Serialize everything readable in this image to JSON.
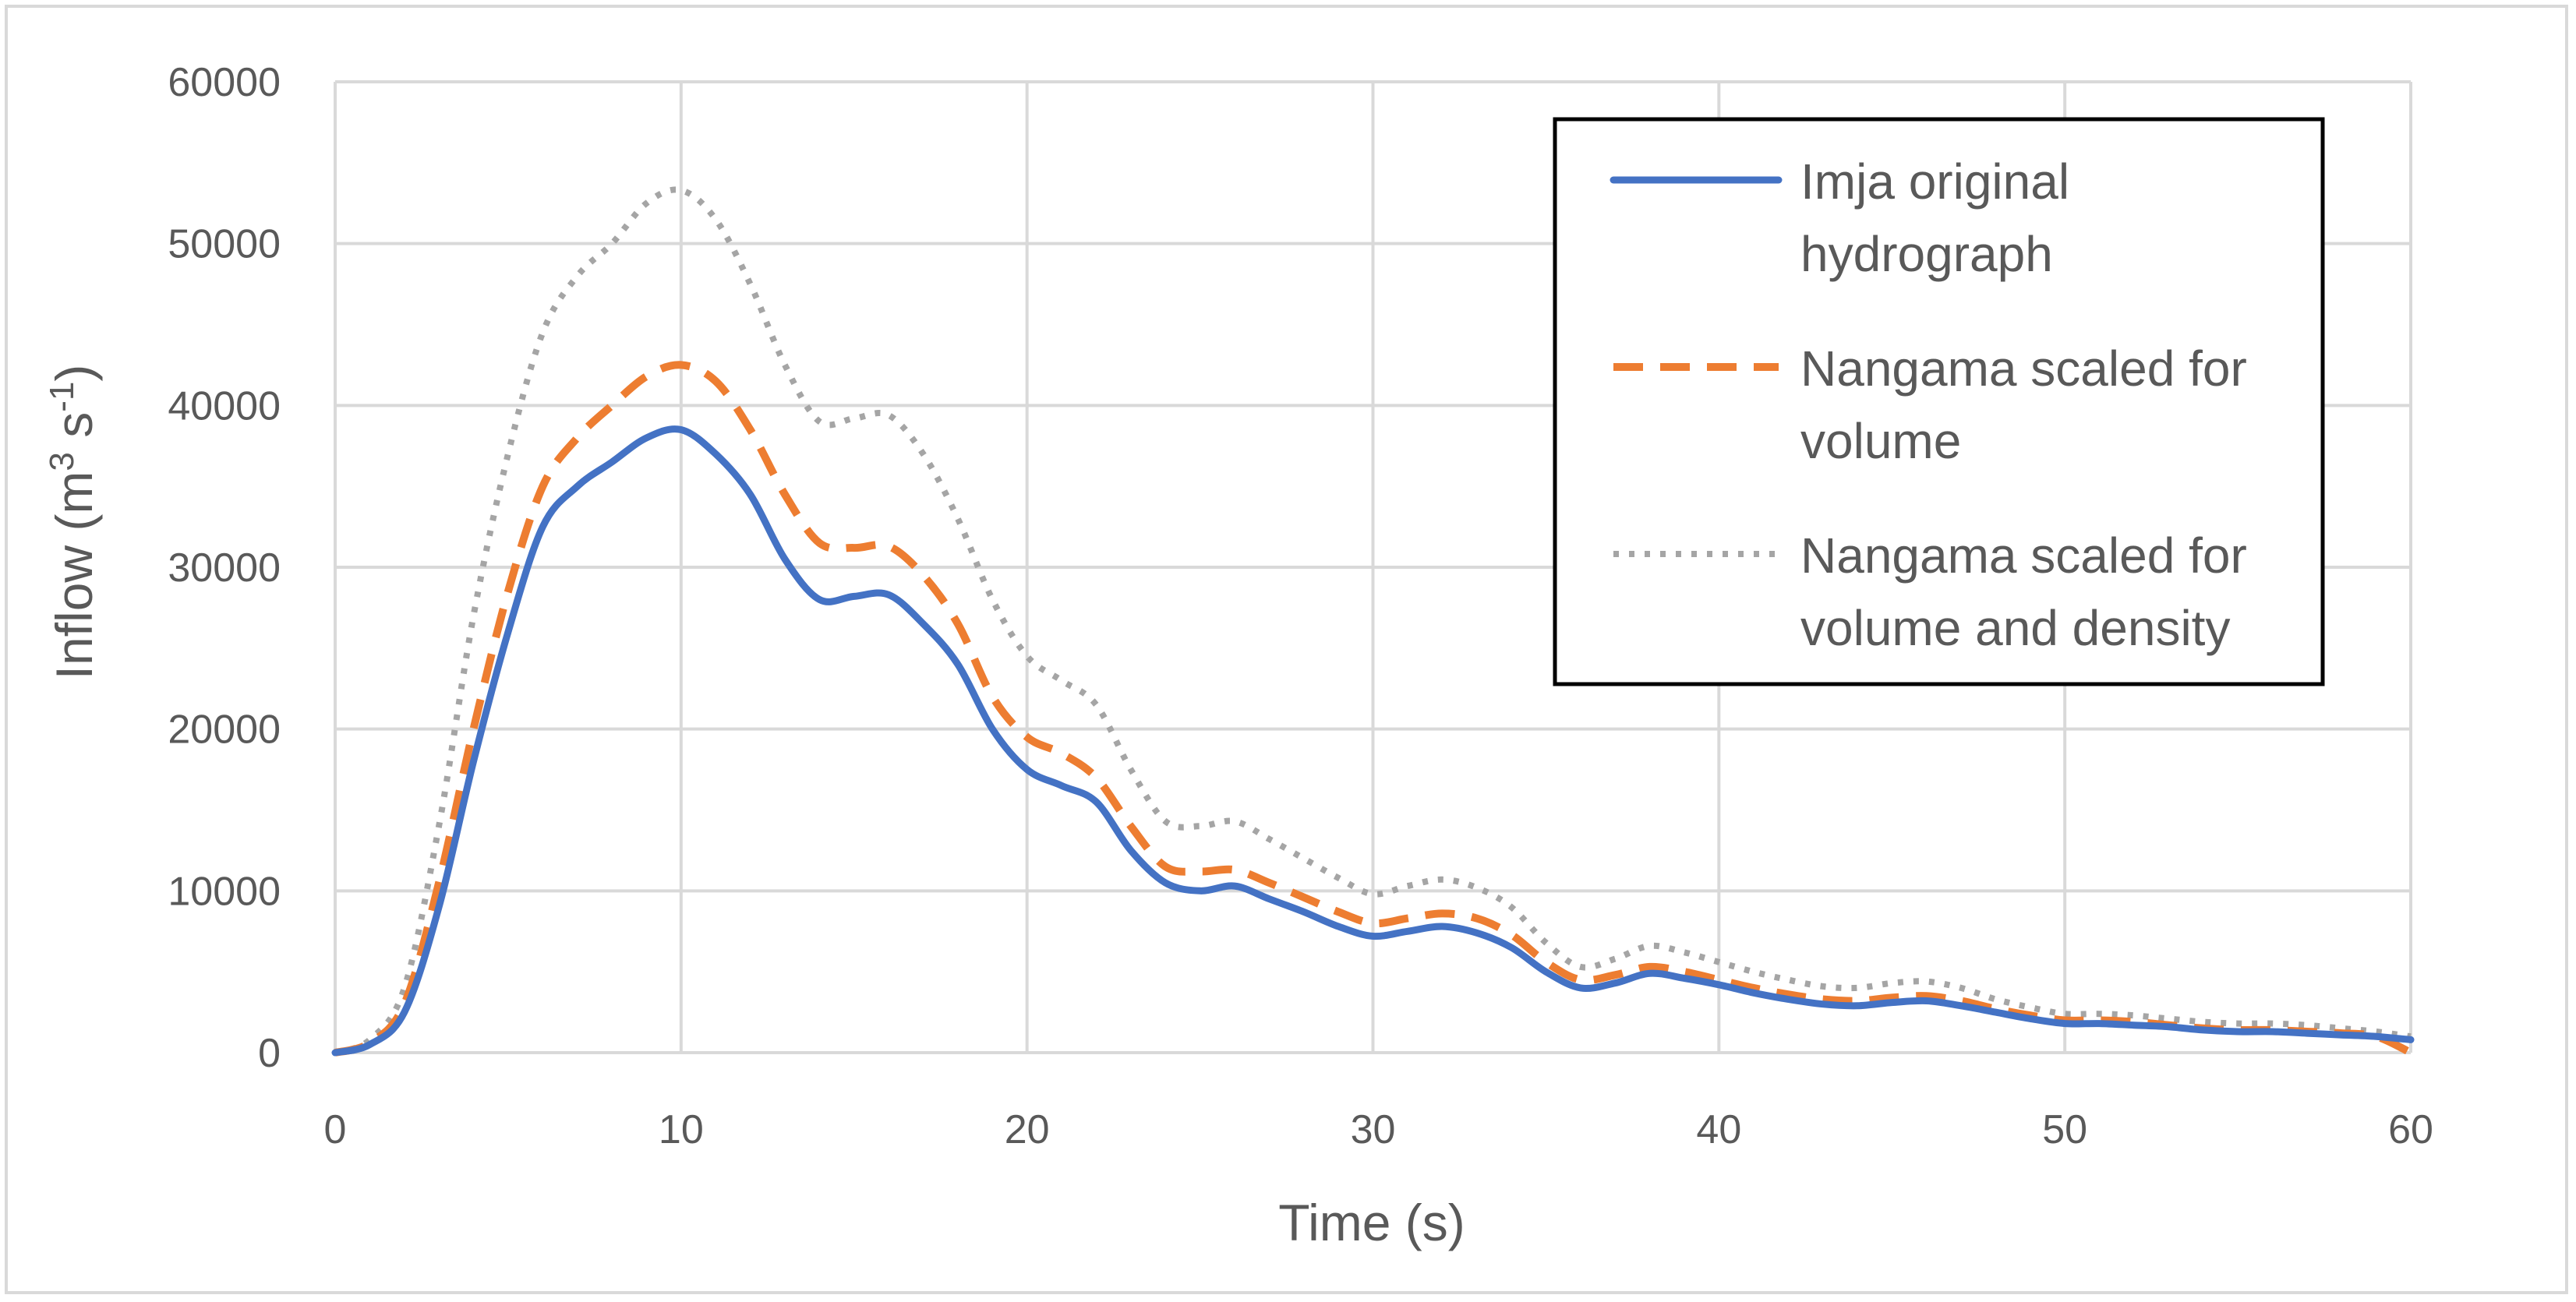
{
  "chart_data": {
    "type": "line",
    "title": "",
    "xlabel": "Time (s)",
    "ylabel": {
      "base": "Inflow (m",
      "sup1": "3",
      "mid": " s",
      "sup2": "-1",
      "end": ")"
    },
    "xlim": [
      0,
      60
    ],
    "ylim": [
      0,
      60000
    ],
    "x_ticks": [
      0,
      10,
      20,
      30,
      40,
      50,
      60
    ],
    "y_ticks": [
      0,
      10000,
      20000,
      30000,
      40000,
      50000,
      60000
    ],
    "grid": true,
    "legend_position": "top-right",
    "series": [
      {
        "name": "Imja original hydrograph",
        "legend_lines": [
          "Imja original",
          "hydrograph"
        ],
        "color": "#4472c4",
        "style": "solid",
        "points": [
          [
            0,
            0
          ],
          [
            1,
            500
          ],
          [
            2,
            2500
          ],
          [
            3,
            9000
          ],
          [
            4,
            18000
          ],
          [
            5,
            26000
          ],
          [
            6,
            32500
          ],
          [
            7,
            35000
          ],
          [
            8,
            36500
          ],
          [
            9,
            38000
          ],
          [
            10,
            38500
          ],
          [
            11,
            37000
          ],
          [
            12,
            34500
          ],
          [
            13,
            30500
          ],
          [
            14,
            28000
          ],
          [
            15,
            28200
          ],
          [
            16,
            28300
          ],
          [
            17,
            26500
          ],
          [
            18,
            24000
          ],
          [
            19,
            20000
          ],
          [
            20,
            17500
          ],
          [
            21,
            16500
          ],
          [
            22,
            15500
          ],
          [
            23,
            12500
          ],
          [
            24,
            10500
          ],
          [
            25,
            10000
          ],
          [
            26,
            10300
          ],
          [
            27,
            9500
          ],
          [
            28,
            8700
          ],
          [
            29,
            7800
          ],
          [
            30,
            7200
          ],
          [
            31,
            7500
          ],
          [
            32,
            7800
          ],
          [
            33,
            7400
          ],
          [
            34,
            6500
          ],
          [
            35,
            5000
          ],
          [
            36,
            4000
          ],
          [
            37,
            4300
          ],
          [
            38,
            4900
          ],
          [
            39,
            4600
          ],
          [
            40,
            4200
          ],
          [
            41,
            3700
          ],
          [
            42,
            3300
          ],
          [
            43,
            3000
          ],
          [
            44,
            2900
          ],
          [
            45,
            3100
          ],
          [
            46,
            3200
          ],
          [
            47,
            2900
          ],
          [
            48,
            2500
          ],
          [
            49,
            2100
          ],
          [
            50,
            1800
          ],
          [
            51,
            1800
          ],
          [
            52,
            1700
          ],
          [
            53,
            1600
          ],
          [
            54,
            1400
          ],
          [
            55,
            1300
          ],
          [
            56,
            1300
          ],
          [
            57,
            1200
          ],
          [
            58,
            1100
          ],
          [
            59,
            1000
          ],
          [
            60,
            800
          ]
        ]
      },
      {
        "name": "Nangama scaled for volume",
        "legend_lines": [
          "Nangama scaled for",
          "volume"
        ],
        "color": "#ed7d31",
        "style": "dashed",
        "points": [
          [
            0,
            0
          ],
          [
            1,
            600
          ],
          [
            2,
            3000
          ],
          [
            3,
            10500
          ],
          [
            4,
            20000
          ],
          [
            5,
            28500
          ],
          [
            6,
            35000
          ],
          [
            7,
            38000
          ],
          [
            8,
            40000
          ],
          [
            9,
            41800
          ],
          [
            10,
            42500
          ],
          [
            11,
            41500
          ],
          [
            12,
            38500
          ],
          [
            13,
            34500
          ],
          [
            14,
            31500
          ],
          [
            15,
            31200
          ],
          [
            16,
            31300
          ],
          [
            17,
            29500
          ],
          [
            18,
            26500
          ],
          [
            19,
            22000
          ],
          [
            20,
            19500
          ],
          [
            21,
            18500
          ],
          [
            22,
            17000
          ],
          [
            23,
            14000
          ],
          [
            24,
            11500
          ],
          [
            25,
            11200
          ],
          [
            26,
            11300
          ],
          [
            27,
            10500
          ],
          [
            28,
            9600
          ],
          [
            29,
            8700
          ],
          [
            30,
            8000
          ],
          [
            31,
            8300
          ],
          [
            32,
            8600
          ],
          [
            33,
            8300
          ],
          [
            34,
            7300
          ],
          [
            35,
            5600
          ],
          [
            36,
            4500
          ],
          [
            37,
            4800
          ],
          [
            38,
            5300
          ],
          [
            39,
            5000
          ],
          [
            40,
            4500
          ],
          [
            41,
            4000
          ],
          [
            42,
            3600
          ],
          [
            43,
            3300
          ],
          [
            44,
            3200
          ],
          [
            45,
            3400
          ],
          [
            46,
            3500
          ],
          [
            47,
            3200
          ],
          [
            48,
            2700
          ],
          [
            49,
            2300
          ],
          [
            50,
            2000
          ],
          [
            51,
            2000
          ],
          [
            52,
            1900
          ],
          [
            53,
            1700
          ],
          [
            54,
            1500
          ],
          [
            55,
            1400
          ],
          [
            56,
            1400
          ],
          [
            57,
            1300
          ],
          [
            58,
            1200
          ],
          [
            59,
            1000
          ],
          [
            60,
            0
          ]
        ]
      },
      {
        "name": "Nangama scaled for volume and density",
        "legend_lines": [
          "Nangama scaled for",
          "volume and density"
        ],
        "color": "#a5a5a5",
        "style": "dotted",
        "points": [
          [
            0,
            0
          ],
          [
            1,
            800
          ],
          [
            2,
            4000
          ],
          [
            3,
            14000
          ],
          [
            4,
            27000
          ],
          [
            5,
            37000
          ],
          [
            6,
            44500
          ],
          [
            7,
            48000
          ],
          [
            8,
            50000
          ],
          [
            9,
            52500
          ],
          [
            10,
            53300
          ],
          [
            11,
            51500
          ],
          [
            12,
            47500
          ],
          [
            13,
            42500
          ],
          [
            14,
            39000
          ],
          [
            15,
            39200
          ],
          [
            16,
            39400
          ],
          [
            17,
            37000
          ],
          [
            18,
            33000
          ],
          [
            19,
            28000
          ],
          [
            20,
            24500
          ],
          [
            21,
            23000
          ],
          [
            22,
            21500
          ],
          [
            23,
            17500
          ],
          [
            24,
            14300
          ],
          [
            25,
            14000
          ],
          [
            26,
            14300
          ],
          [
            27,
            13200
          ],
          [
            28,
            12000
          ],
          [
            29,
            10800
          ],
          [
            30,
            9800
          ],
          [
            31,
            10300
          ],
          [
            32,
            10700
          ],
          [
            33,
            10200
          ],
          [
            34,
            9000
          ],
          [
            35,
            6800
          ],
          [
            36,
            5300
          ],
          [
            37,
            5800
          ],
          [
            38,
            6600
          ],
          [
            39,
            6200
          ],
          [
            40,
            5600
          ],
          [
            41,
            5000
          ],
          [
            42,
            4500
          ],
          [
            43,
            4100
          ],
          [
            44,
            4000
          ],
          [
            45,
            4300
          ],
          [
            46,
            4400
          ],
          [
            47,
            4000
          ],
          [
            48,
            3300
          ],
          [
            49,
            2800
          ],
          [
            50,
            2400
          ],
          [
            51,
            2400
          ],
          [
            52,
            2300
          ],
          [
            53,
            2100
          ],
          [
            54,
            1900
          ],
          [
            55,
            1800
          ],
          [
            56,
            1800
          ],
          [
            57,
            1700
          ],
          [
            58,
            1500
          ],
          [
            59,
            1300
          ],
          [
            60,
            1000
          ]
        ]
      }
    ]
  }
}
